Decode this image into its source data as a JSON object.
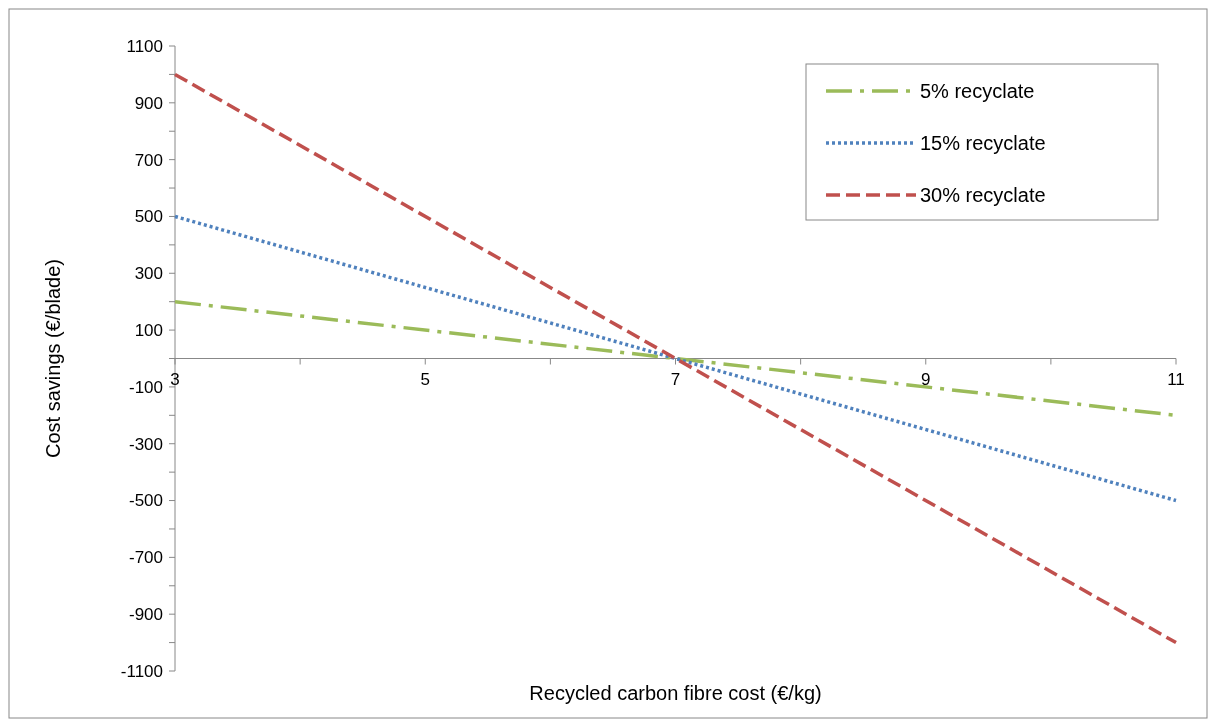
{
  "chart_data": {
    "type": "line",
    "xlabel": "Recycled carbon fibre cost (€/kg)",
    "ylabel": "Cost savings (€/blade)",
    "xlim": [
      3,
      11
    ],
    "xticks": [
      3,
      {
        "value": 4,
        "label": null
      },
      5,
      {
        "value": 6,
        "label": null
      },
      7,
      {
        "value": 8,
        "label": null
      },
      9,
      {
        "value": 10,
        "label": null
      },
      11
    ],
    "ylim": [
      -1100,
      1100
    ],
    "yticks": [
      -1100,
      {
        "value": -1000,
        "label": null
      },
      -900,
      {
        "value": -800,
        "label": null
      },
      -700,
      {
        "value": -600,
        "label": null
      },
      -500,
      {
        "value": -400,
        "label": null
      },
      -300,
      {
        "value": -200,
        "label": null
      },
      -100,
      {
        "value": 0,
        "label": null
      },
      100,
      {
        "value": 200,
        "label": null
      },
      300,
      {
        "value": 400,
        "label": null
      },
      500,
      {
        "value": 600,
        "label": null
      },
      700,
      {
        "value": 800,
        "label": null
      },
      900,
      {
        "value": 1000,
        "label": null
      },
      1100
    ],
    "grid": false,
    "legend": "top right",
    "marker": "none",
    "series": [
      {
        "name": "5% recyclate",
        "color": "#9bbb59",
        "line_style": "dashdot",
        "x": [
          3,
          7,
          11
        ],
        "values": [
          200,
          0,
          -200
        ]
      },
      {
        "name": "15% recyclate",
        "color": "#4f81bd",
        "line_style": "dotted",
        "x": [
          3,
          7,
          11
        ],
        "values": [
          500,
          0,
          -500
        ]
      },
      {
        "name": "30% recyclate",
        "color": "#c0504d",
        "line_style": "dashed",
        "x": [
          3,
          7,
          11
        ],
        "values": [
          1000,
          0,
          -1000
        ]
      }
    ]
  }
}
